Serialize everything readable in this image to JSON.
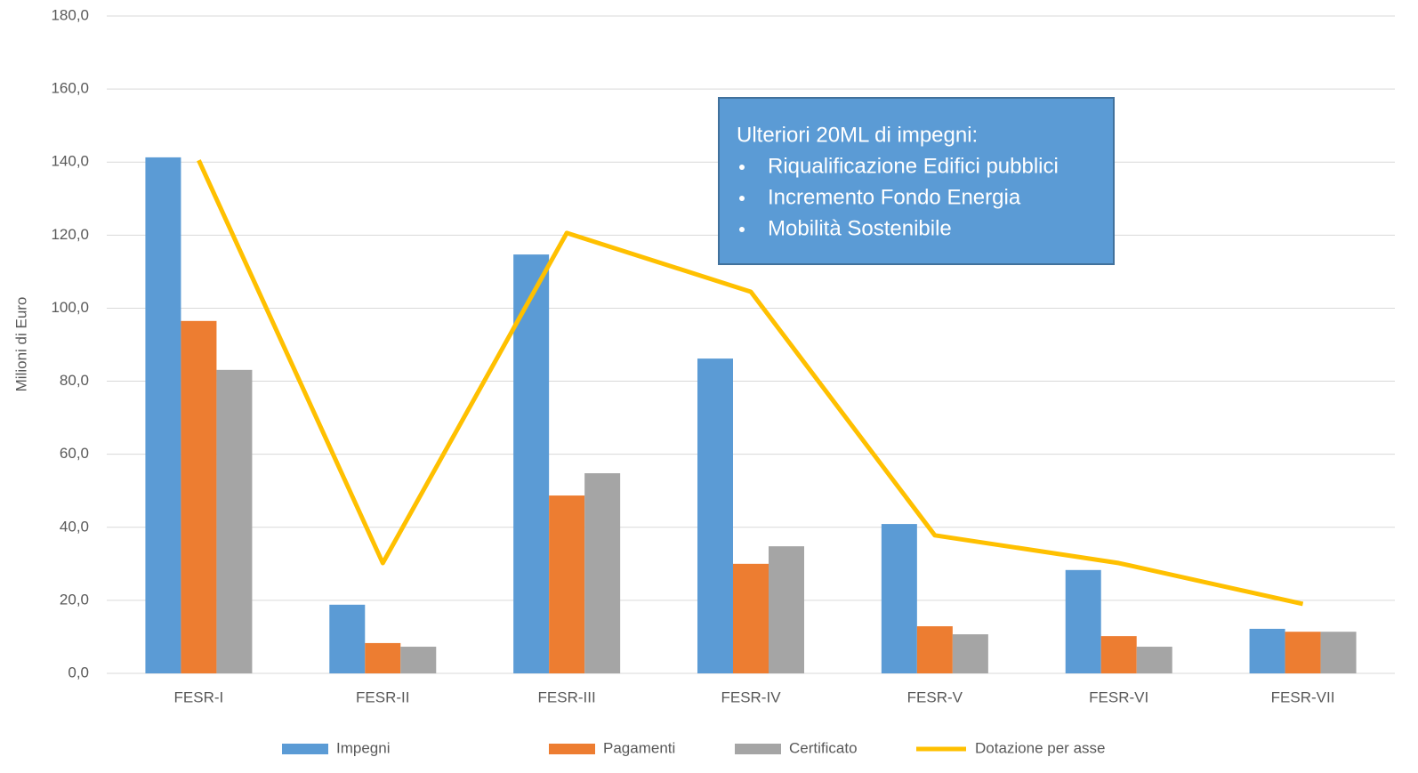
{
  "chart_data": {
    "type": "bar",
    "y_axis_label": "Milioni di Euro",
    "categories": [
      "FESR-I",
      "FESR-II",
      "FESR-III",
      "FESR-IV",
      "FESR-V",
      "FESR-VI",
      "FESR-VII"
    ],
    "series": [
      {
        "name": "Impegni",
        "color": "#5b9bd5",
        "values": [
          141.3,
          18.8,
          114.7,
          86.2,
          40.9,
          28.3,
          12.2
        ]
      },
      {
        "name": "Pagamenti",
        "color": "#ed7d31",
        "values": [
          96.5,
          8.3,
          48.7,
          30.0,
          12.9,
          10.2,
          11.4
        ]
      },
      {
        "name": "Certificato",
        "color": "#a5a5a5",
        "values": [
          83.1,
          7.3,
          54.8,
          34.8,
          10.7,
          7.3,
          11.4
        ]
      },
      {
        "name": "Dotazione per asse",
        "color": "#ffc000",
        "type": "line",
        "values": [
          140.5,
          30.2,
          120.6,
          104.5,
          37.8,
          30.2,
          19.0
        ]
      }
    ],
    "ylim": [
      0,
      180
    ],
    "yticks": [
      {
        "value": 0,
        "label": "0,0"
      },
      {
        "value": 20,
        "label": "20,0"
      },
      {
        "value": 40,
        "label": "40,0"
      },
      {
        "value": 60,
        "label": "60,0"
      },
      {
        "value": 80,
        "label": "80,0"
      },
      {
        "value": 100,
        "label": "100,0"
      },
      {
        "value": 120,
        "label": "120,0"
      },
      {
        "value": 140,
        "label": "140,0"
      },
      {
        "value": 160,
        "label": "160,0"
      },
      {
        "value": 180,
        "label": "180,0"
      }
    ],
    "grid": true,
    "legend": "bottom",
    "annotation": {
      "title": "Ulteriori 20ML di impegni:",
      "items": [
        "Riqualificazione Edifici pubblici",
        "Incremento Fondo Energia",
        "Mobilità Sostenibile"
      ]
    }
  }
}
